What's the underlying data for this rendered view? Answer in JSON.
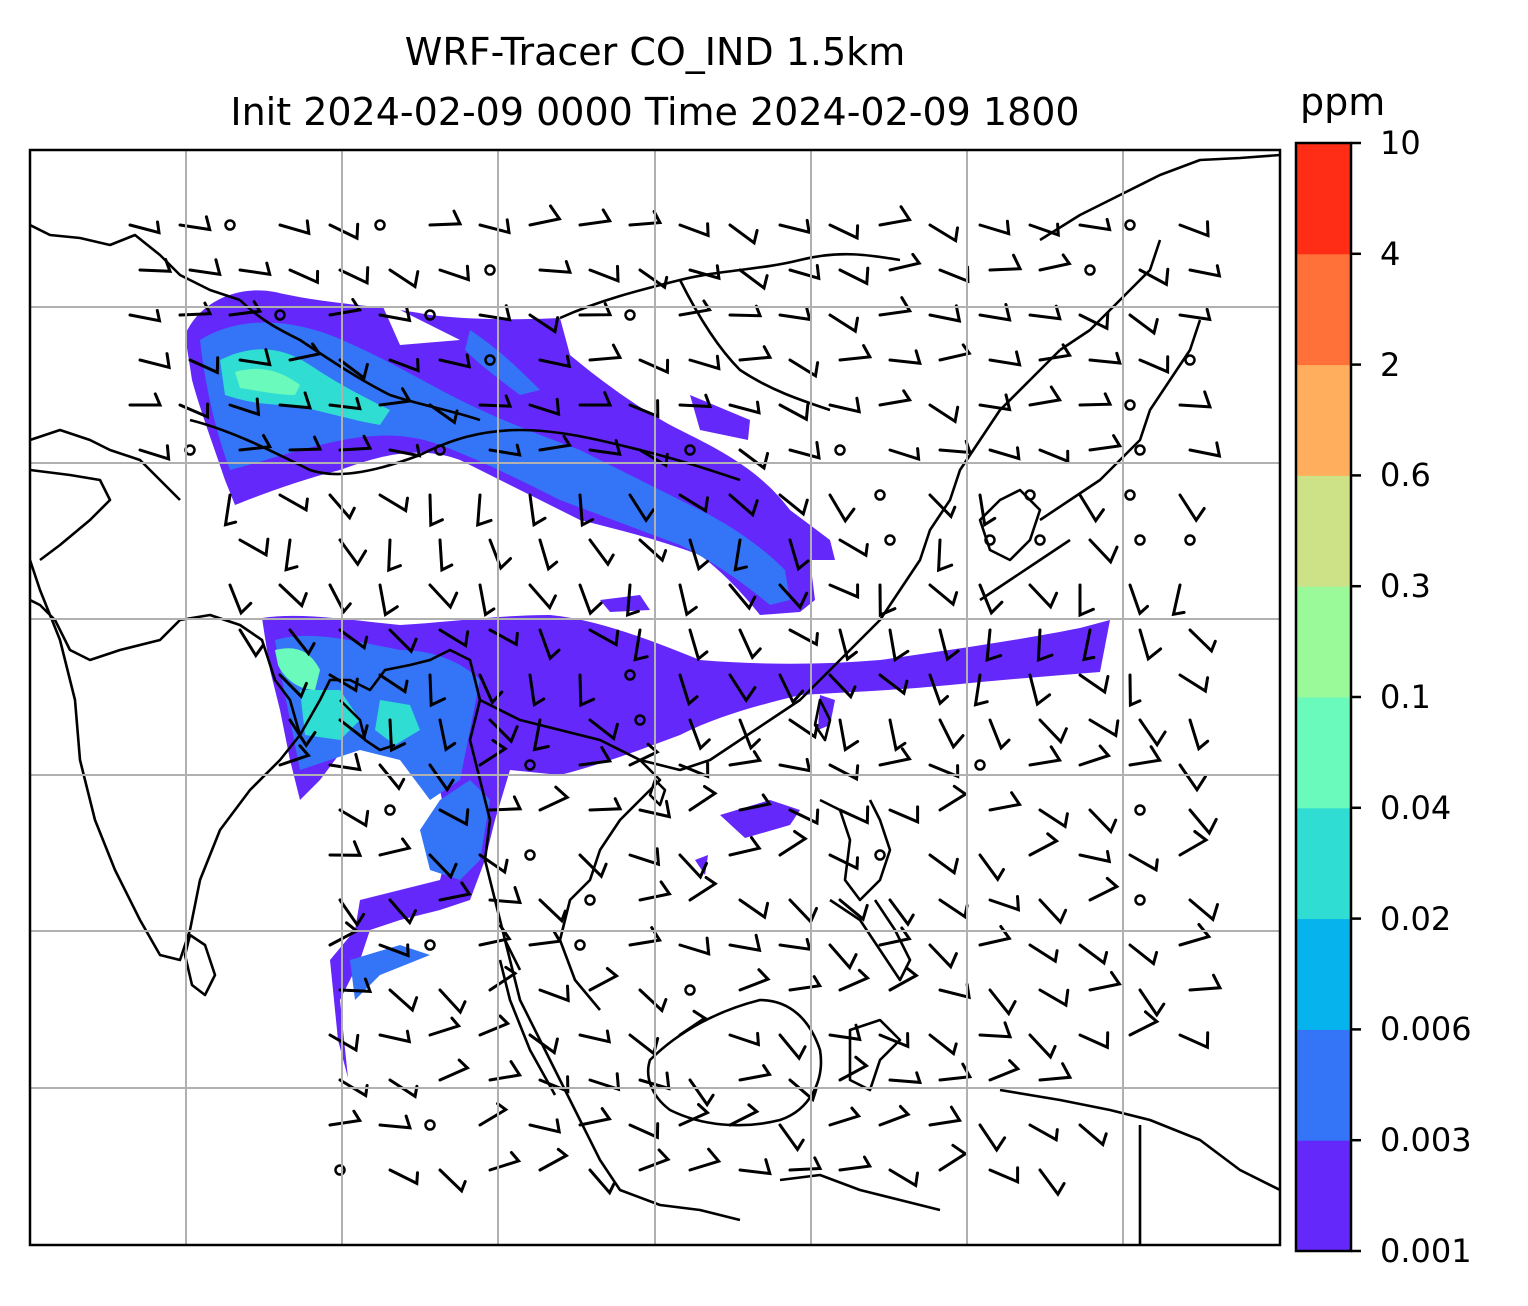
{
  "title": {
    "line1": "WRF-Tracer CO_IND 1.5km",
    "line2": "Init 2024-02-09 0000 Time 2024-02-09 1800"
  },
  "colorbar": {
    "unit": "ppm",
    "levels": [
      "0.001",
      "0.003",
      "0.006",
      "0.02",
      "0.04",
      "0.1",
      "0.3",
      "0.6",
      "2",
      "4",
      "10"
    ],
    "colors": [
      "#6428fb",
      "#3474f6",
      "#06b3ec",
      "#30ddd2",
      "#6afbbc",
      "#9afa9a",
      "#cde287",
      "#ffae5e",
      "#ff7138",
      "#ff2d16"
    ]
  },
  "map": {
    "background": "#ffffff",
    "coastline_color": "#000000",
    "gridline_color": "#b0b0b0"
  }
}
